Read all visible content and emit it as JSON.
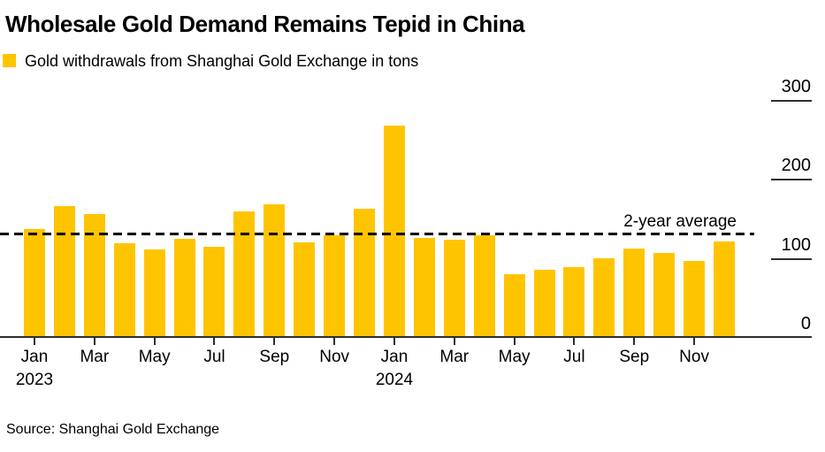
{
  "title": "Wholesale Gold Demand Remains Tepid in China",
  "legend": {
    "label": "Gold withdrawals from Shanghai Gold Exchange in tons"
  },
  "source": "Source: Shanghai Gold Exchange",
  "colors": {
    "bar": "#FFC400",
    "axis": "#2F2F2F",
    "text": "#000000"
  },
  "chart_data": {
    "type": "bar",
    "title": "Wholesale Gold Demand Remains Tepid in China",
    "series_label": "Gold withdrawals from Shanghai Gold Exchange in tons",
    "unit": "tons",
    "categories": [
      "Jan 2023",
      "Feb 2023",
      "Mar 2023",
      "Apr 2023",
      "May 2023",
      "Jun 2023",
      "Jul 2023",
      "Aug 2023",
      "Sep 2023",
      "Oct 2023",
      "Nov 2023",
      "Dec 2023",
      "Jan 2024",
      "Feb 2024",
      "Mar 2024",
      "Apr 2024",
      "May 2024",
      "Jun 2024",
      "Jul 2024",
      "Aug 2024",
      "Sep 2024",
      "Oct 2024",
      "Nov 2024",
      "Dec 2024"
    ],
    "values": [
      138,
      167,
      157,
      120,
      112,
      125,
      115,
      160,
      169,
      121,
      130,
      163,
      269,
      126,
      124,
      130,
      81,
      86,
      89,
      101,
      113,
      107,
      97,
      122
    ],
    "average_line": {
      "label": "2-year average",
      "value": 131
    },
    "ylim": [
      0,
      300
    ],
    "yticks": [
      300,
      200,
      100,
      0
    ],
    "xticks": [
      {
        "month": "Jan",
        "year": "2023"
      },
      {
        "month": "Mar"
      },
      {
        "month": "May"
      },
      {
        "month": "Jul"
      },
      {
        "month": "Sep"
      },
      {
        "month": "Nov"
      },
      {
        "month": "Jan",
        "year": "2024"
      },
      {
        "month": "Mar"
      },
      {
        "month": "May"
      },
      {
        "month": "Jul"
      },
      {
        "month": "Sep"
      },
      {
        "month": "Nov"
      }
    ],
    "y_axis_side": "right",
    "grid": false,
    "legend_position": "top-left",
    "bar_color": "#FFC400"
  }
}
